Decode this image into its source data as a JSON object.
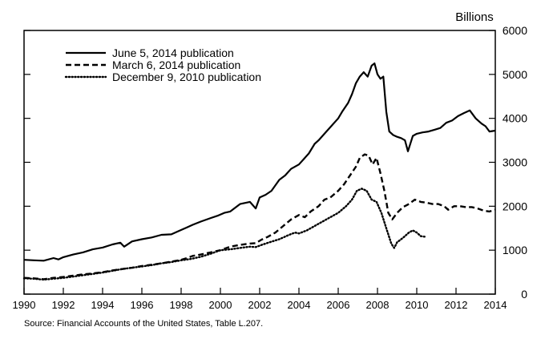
{
  "source_note": "Source: Financial Accounts of the United States, Table L.207.",
  "chart_data": {
    "type": "line",
    "title": "",
    "xlabel": "",
    "ylabel": "Billions",
    "xlim": [
      1990,
      2014
    ],
    "ylim": [
      0,
      6000
    ],
    "x_ticks": [
      "1990",
      "1992",
      "1994",
      "1996",
      "1998",
      "2000",
      "2002",
      "2004",
      "2006",
      "2008",
      "2010",
      "2012",
      "2014"
    ],
    "y_ticks": [
      "0",
      "1000",
      "2000",
      "3000",
      "4000",
      "5000",
      "6000"
    ],
    "legend_position": "top-left",
    "grid": false,
    "series": [
      {
        "name": "June 5, 2014 publication",
        "style": "solid",
        "points": [
          [
            1990.0,
            780
          ],
          [
            1990.5,
            770
          ],
          [
            1991.0,
            760
          ],
          [
            1991.5,
            820
          ],
          [
            1991.75,
            790
          ],
          [
            1992.0,
            840
          ],
          [
            1992.5,
            900
          ],
          [
            1993.0,
            950
          ],
          [
            1993.5,
            1020
          ],
          [
            1994.0,
            1060
          ],
          [
            1994.5,
            1130
          ],
          [
            1994.9,
            1170
          ],
          [
            1995.1,
            1080
          ],
          [
            1995.5,
            1200
          ],
          [
            1996.0,
            1250
          ],
          [
            1996.5,
            1290
          ],
          [
            1997.0,
            1350
          ],
          [
            1997.5,
            1360
          ],
          [
            1997.9,
            1440
          ],
          [
            1998.3,
            1520
          ],
          [
            1998.6,
            1580
          ],
          [
            1999.0,
            1650
          ],
          [
            1999.5,
            1730
          ],
          [
            1999.9,
            1790
          ],
          [
            2000.2,
            1850
          ],
          [
            2000.5,
            1880
          ],
          [
            2001.0,
            2050
          ],
          [
            2001.5,
            2100
          ],
          [
            2001.8,
            1950
          ],
          [
            2002.0,
            2200
          ],
          [
            2002.3,
            2260
          ],
          [
            2002.6,
            2350
          ],
          [
            2003.0,
            2600
          ],
          [
            2003.3,
            2700
          ],
          [
            2003.6,
            2850
          ],
          [
            2004.0,
            2950
          ],
          [
            2004.5,
            3200
          ],
          [
            2004.8,
            3420
          ],
          [
            2005.0,
            3500
          ],
          [
            2005.3,
            3650
          ],
          [
            2005.6,
            3800
          ],
          [
            2006.0,
            4000
          ],
          [
            2006.2,
            4150
          ],
          [
            2006.5,
            4350
          ],
          [
            2006.7,
            4550
          ],
          [
            2006.9,
            4800
          ],
          [
            2007.1,
            4950
          ],
          [
            2007.3,
            5050
          ],
          [
            2007.5,
            4950
          ],
          [
            2007.7,
            5200
          ],
          [
            2007.85,
            5250
          ],
          [
            2008.0,
            5000
          ],
          [
            2008.15,
            4900
          ],
          [
            2008.3,
            4950
          ],
          [
            2008.45,
            4150
          ],
          [
            2008.6,
            3700
          ],
          [
            2008.8,
            3620
          ],
          [
            2009.0,
            3580
          ],
          [
            2009.2,
            3550
          ],
          [
            2009.4,
            3500
          ],
          [
            2009.55,
            3250
          ],
          [
            2009.8,
            3600
          ],
          [
            2010.0,
            3650
          ],
          [
            2010.3,
            3680
          ],
          [
            2010.6,
            3700
          ],
          [
            2010.9,
            3740
          ],
          [
            2011.2,
            3780
          ],
          [
            2011.5,
            3900
          ],
          [
            2011.8,
            3950
          ],
          [
            2012.1,
            4050
          ],
          [
            2012.4,
            4120
          ],
          [
            2012.7,
            4180
          ],
          [
            2013.0,
            4000
          ],
          [
            2013.3,
            3880
          ],
          [
            2013.5,
            3820
          ],
          [
            2013.7,
            3700
          ],
          [
            2014.0,
            3720
          ]
        ]
      },
      {
        "name": "March 6, 2014 publication",
        "style": "dashed",
        "points": [
          [
            1990.0,
            370
          ],
          [
            1990.5,
            360
          ],
          [
            1991.0,
            340
          ],
          [
            1991.5,
            370
          ],
          [
            1992.0,
            390
          ],
          [
            1992.5,
            420
          ],
          [
            1993.0,
            450
          ],
          [
            1993.5,
            470
          ],
          [
            1994.0,
            500
          ],
          [
            1994.5,
            540
          ],
          [
            1995.0,
            570
          ],
          [
            1995.5,
            600
          ],
          [
            1996.0,
            640
          ],
          [
            1996.5,
            670
          ],
          [
            1997.0,
            700
          ],
          [
            1997.5,
            740
          ],
          [
            1998.0,
            780
          ],
          [
            1998.3,
            820
          ],
          [
            1998.6,
            870
          ],
          [
            1999.0,
            900
          ],
          [
            1999.5,
            950
          ],
          [
            2000.0,
            1000
          ],
          [
            2000.5,
            1080
          ],
          [
            2001.0,
            1120
          ],
          [
            2001.5,
            1150
          ],
          [
            2001.8,
            1160
          ],
          [
            2002.1,
            1240
          ],
          [
            2002.4,
            1300
          ],
          [
            2002.8,
            1400
          ],
          [
            2003.2,
            1550
          ],
          [
            2003.6,
            1700
          ],
          [
            2004.0,
            1800
          ],
          [
            2004.3,
            1750
          ],
          [
            2004.6,
            1880
          ],
          [
            2005.0,
            2000
          ],
          [
            2005.3,
            2150
          ],
          [
            2005.6,
            2200
          ],
          [
            2006.0,
            2350
          ],
          [
            2006.3,
            2500
          ],
          [
            2006.6,
            2700
          ],
          [
            2006.9,
            2900
          ],
          [
            2007.1,
            3100
          ],
          [
            2007.35,
            3180
          ],
          [
            2007.55,
            3150
          ],
          [
            2007.75,
            2950
          ],
          [
            2007.95,
            3100
          ],
          [
            2008.15,
            2750
          ],
          [
            2008.35,
            2350
          ],
          [
            2008.55,
            1850
          ],
          [
            2008.75,
            1700
          ],
          [
            2009.0,
            1850
          ],
          [
            2009.3,
            1980
          ],
          [
            2009.6,
            2050
          ],
          [
            2009.9,
            2150
          ],
          [
            2010.2,
            2100
          ],
          [
            2010.5,
            2080
          ],
          [
            2010.8,
            2050
          ],
          [
            2011.1,
            2050
          ],
          [
            2011.4,
            2000
          ],
          [
            2011.6,
            1920
          ],
          [
            2011.9,
            2000
          ],
          [
            2012.2,
            2000
          ],
          [
            2012.5,
            1980
          ],
          [
            2012.8,
            1980
          ],
          [
            2013.1,
            1950
          ],
          [
            2013.4,
            1900
          ],
          [
            2013.7,
            1880
          ],
          [
            2014.0,
            1920
          ]
        ]
      },
      {
        "name": "December 9, 2010 publication",
        "style": "dotted",
        "points": [
          [
            1990.0,
            360
          ],
          [
            1990.5,
            350
          ],
          [
            1991.0,
            330
          ],
          [
            1991.5,
            350
          ],
          [
            1992.0,
            370
          ],
          [
            1992.5,
            400
          ],
          [
            1993.0,
            430
          ],
          [
            1993.5,
            460
          ],
          [
            1994.0,
            490
          ],
          [
            1994.5,
            530
          ],
          [
            1995.0,
            570
          ],
          [
            1995.5,
            600
          ],
          [
            1996.0,
            630
          ],
          [
            1996.5,
            660
          ],
          [
            1997.0,
            700
          ],
          [
            1997.5,
            730
          ],
          [
            1998.0,
            770
          ],
          [
            1998.5,
            800
          ],
          [
            1999.0,
            850
          ],
          [
            1999.5,
            920
          ],
          [
            2000.0,
            1000
          ],
          [
            2000.5,
            1020
          ],
          [
            2001.0,
            1050
          ],
          [
            2001.5,
            1080
          ],
          [
            2001.8,
            1070
          ],
          [
            2002.1,
            1120
          ],
          [
            2002.5,
            1180
          ],
          [
            2003.0,
            1250
          ],
          [
            2003.5,
            1350
          ],
          [
            2003.8,
            1400
          ],
          [
            2004.0,
            1380
          ],
          [
            2004.4,
            1450
          ],
          [
            2004.8,
            1550
          ],
          [
            2005.2,
            1650
          ],
          [
            2005.6,
            1750
          ],
          [
            2006.0,
            1850
          ],
          [
            2006.4,
            2000
          ],
          [
            2006.7,
            2150
          ],
          [
            2006.95,
            2350
          ],
          [
            2007.2,
            2400
          ],
          [
            2007.45,
            2350
          ],
          [
            2007.7,
            2150
          ],
          [
            2007.95,
            2100
          ],
          [
            2008.2,
            1850
          ],
          [
            2008.45,
            1500
          ],
          [
            2008.7,
            1150
          ],
          [
            2008.85,
            1050
          ],
          [
            2009.0,
            1180
          ],
          [
            2009.3,
            1280
          ],
          [
            2009.6,
            1400
          ],
          [
            2009.8,
            1450
          ],
          [
            2010.0,
            1400
          ],
          [
            2010.2,
            1320
          ],
          [
            2010.5,
            1300
          ]
        ]
      }
    ]
  }
}
